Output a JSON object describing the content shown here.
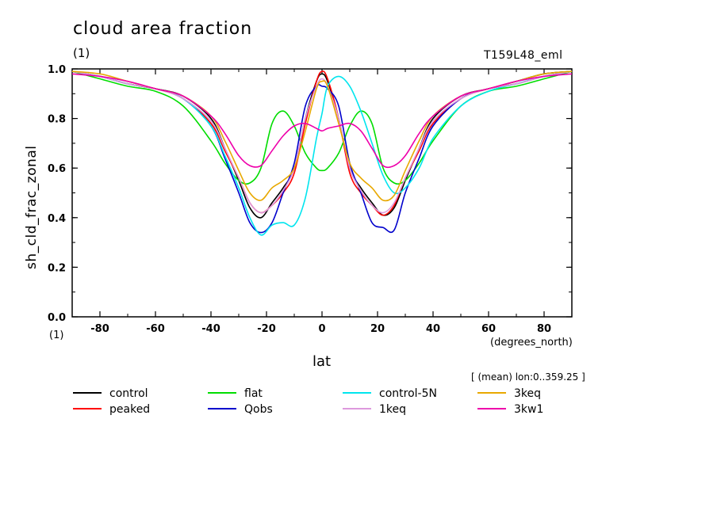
{
  "header": {
    "title": "cloud area fraction",
    "units": "(1)",
    "run_name": "T159L48_eml"
  },
  "axes": {
    "ylabel": "sh_cld_frac_zonal",
    "xlabel": "lat",
    "x_units": "(degrees_north)",
    "y_unit_note": "(1)",
    "mean_note": "[ (mean) lon:0..359.25 ]"
  },
  "chart_data": {
    "type": "line",
    "title": "cloud area fraction",
    "xlabel": "lat",
    "ylabel": "sh_cld_frac_zonal",
    "xlim": [
      -90,
      90
    ],
    "ylim": [
      0.0,
      1.0
    ],
    "x_ticks": [
      -80,
      -60,
      -40,
      -20,
      0,
      20,
      40,
      60,
      80
    ],
    "y_ticks": [
      "0.0",
      "0.2",
      "0.4",
      "0.6",
      "0.8",
      "1.0"
    ],
    "x": [
      -90,
      -80,
      -70,
      -60,
      -50,
      -40,
      -35,
      -30,
      -26,
      -22,
      -18,
      -14,
      -10,
      -6,
      -2,
      0,
      2,
      6,
      10,
      14,
      18,
      22,
      26,
      30,
      35,
      40,
      50,
      60,
      70,
      80,
      90
    ],
    "series": [
      {
        "name": "control",
        "color": "#000000",
        "values": [
          0.99,
          0.97,
          0.94,
          0.92,
          0.89,
          0.8,
          0.68,
          0.55,
          0.44,
          0.4,
          0.46,
          0.52,
          0.6,
          0.8,
          0.95,
          0.98,
          0.95,
          0.8,
          0.6,
          0.52,
          0.46,
          0.41,
          0.44,
          0.55,
          0.68,
          0.8,
          0.89,
          0.92,
          0.95,
          0.98,
          0.99
        ]
      },
      {
        "name": "peaked",
        "color": "#ff0000",
        "values": [
          0.99,
          0.97,
          0.94,
          0.92,
          0.88,
          0.78,
          0.67,
          0.56,
          0.46,
          0.42,
          0.45,
          0.5,
          0.58,
          0.78,
          0.95,
          0.99,
          0.96,
          0.8,
          0.58,
          0.5,
          0.45,
          0.41,
          0.45,
          0.56,
          0.67,
          0.78,
          0.88,
          0.92,
          0.94,
          0.97,
          0.99
        ]
      },
      {
        "name": "flat",
        "color": "#00dd00",
        "values": [
          0.99,
          0.96,
          0.93,
          0.91,
          0.85,
          0.71,
          0.62,
          0.55,
          0.54,
          0.6,
          0.78,
          0.83,
          0.77,
          0.66,
          0.6,
          0.59,
          0.6,
          0.66,
          0.77,
          0.83,
          0.78,
          0.6,
          0.54,
          0.55,
          0.62,
          0.71,
          0.85,
          0.91,
          0.93,
          0.96,
          0.99
        ]
      },
      {
        "name": "Qobs",
        "color": "#0000cc",
        "values": [
          0.99,
          0.97,
          0.94,
          0.92,
          0.88,
          0.77,
          0.64,
          0.5,
          0.38,
          0.34,
          0.38,
          0.5,
          0.62,
          0.85,
          0.93,
          0.93,
          0.92,
          0.85,
          0.62,
          0.5,
          0.38,
          0.36,
          0.35,
          0.5,
          0.64,
          0.77,
          0.88,
          0.92,
          0.94,
          0.97,
          0.99
        ]
      },
      {
        "name": "control-5N",
        "color": "#00e5ee",
        "values": [
          0.99,
          0.97,
          0.94,
          0.92,
          0.88,
          0.77,
          0.65,
          0.52,
          0.4,
          0.33,
          0.37,
          0.38,
          0.37,
          0.48,
          0.72,
          0.82,
          0.93,
          0.97,
          0.93,
          0.83,
          0.7,
          0.57,
          0.5,
          0.52,
          0.6,
          0.72,
          0.85,
          0.91,
          0.94,
          0.97,
          0.99
        ]
      },
      {
        "name": "1keq",
        "color": "#dd99dd",
        "values": [
          0.99,
          0.97,
          0.94,
          0.92,
          0.88,
          0.79,
          0.68,
          0.56,
          0.46,
          0.42,
          0.45,
          0.51,
          0.6,
          0.8,
          0.93,
          0.96,
          0.93,
          0.8,
          0.6,
          0.51,
          0.45,
          0.42,
          0.46,
          0.56,
          0.68,
          0.79,
          0.88,
          0.92,
          0.94,
          0.97,
          0.99
        ]
      },
      {
        "name": "3keq",
        "color": "#e8a800",
        "values": [
          0.99,
          0.98,
          0.95,
          0.92,
          0.89,
          0.81,
          0.71,
          0.59,
          0.5,
          0.47,
          0.52,
          0.55,
          0.6,
          0.75,
          0.92,
          0.95,
          0.93,
          0.78,
          0.62,
          0.56,
          0.52,
          0.47,
          0.49,
          0.59,
          0.71,
          0.81,
          0.89,
          0.92,
          0.95,
          0.98,
          0.99
        ]
      },
      {
        "name": "3kw1",
        "color": "#ee00aa",
        "values": [
          0.98,
          0.97,
          0.95,
          0.92,
          0.89,
          0.81,
          0.74,
          0.65,
          0.61,
          0.61,
          0.67,
          0.73,
          0.77,
          0.78,
          0.76,
          0.75,
          0.76,
          0.77,
          0.78,
          0.75,
          0.68,
          0.61,
          0.61,
          0.65,
          0.74,
          0.81,
          0.89,
          0.92,
          0.95,
          0.97,
          0.98
        ]
      }
    ],
    "legend": {
      "placement": "bottom",
      "entries": [
        "control",
        "flat",
        "control-5N",
        "3keq",
        "peaked",
        "Qobs",
        "1keq",
        "3kw1"
      ]
    },
    "grid": false
  }
}
